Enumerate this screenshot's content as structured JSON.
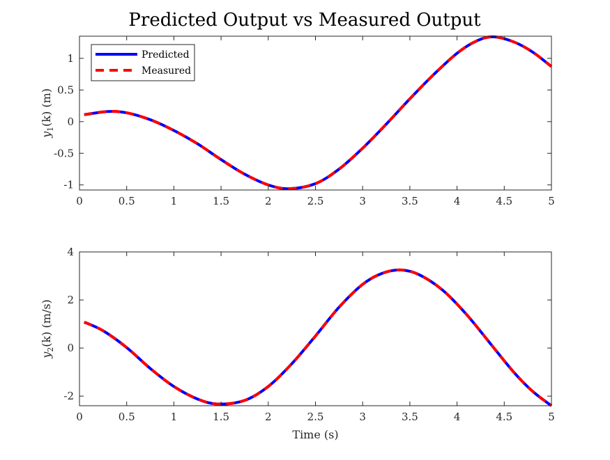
{
  "title": "Predicted Output vs Measured Output",
  "legend": {
    "placement": "top-left (top subplot)",
    "entries": [
      {
        "name": "Predicted",
        "color": "#0000ff",
        "style": "solid"
      },
      {
        "name": "Measured",
        "color": "#ff0000",
        "style": "dashed"
      }
    ]
  },
  "chart_data": [
    {
      "type": "line",
      "ylabel": {
        "prefix": "y",
        "sub": "1",
        "suffix": "(k) (m)"
      },
      "xlabel": "",
      "xlim": [
        0,
        5
      ],
      "ylim": [
        -1.08,
        1.35
      ],
      "xticks": [
        0,
        0.5,
        1,
        1.5,
        2,
        2.5,
        3,
        3.5,
        4,
        4.5,
        5
      ],
      "xtick_labels": [
        "0",
        "0.5",
        "1",
        "1.5",
        "2",
        "2.5",
        "3",
        "3.5",
        "4",
        "4.5",
        "5"
      ],
      "yticks": [
        -1,
        -0.5,
        0,
        0.5,
        1
      ],
      "ytick_labels": [
        "-1",
        "-0.5",
        "0",
        "0.5",
        "1"
      ],
      "grid": false,
      "x": [
        0.05,
        0.3,
        0.5,
        0.75,
        1.0,
        1.25,
        1.5,
        1.75,
        2.0,
        2.22,
        2.5,
        2.75,
        3.0,
        3.25,
        3.5,
        3.75,
        4.0,
        4.2,
        4.38,
        4.6,
        4.8,
        5.0
      ],
      "series": [
        {
          "name": "Predicted",
          "values": [
            0.11,
            0.16,
            0.14,
            0.03,
            -0.14,
            -0.35,
            -0.6,
            -0.83,
            -1.0,
            -1.06,
            -0.98,
            -0.75,
            -0.42,
            -0.04,
            0.36,
            0.74,
            1.08,
            1.27,
            1.34,
            1.26,
            1.1,
            0.87
          ]
        },
        {
          "name": "Measured",
          "values": [
            0.11,
            0.16,
            0.14,
            0.03,
            -0.14,
            -0.35,
            -0.6,
            -0.83,
            -1.0,
            -1.06,
            -0.98,
            -0.75,
            -0.42,
            -0.04,
            0.36,
            0.74,
            1.08,
            1.27,
            1.34,
            1.26,
            1.1,
            0.87
          ]
        }
      ]
    },
    {
      "type": "line",
      "ylabel": {
        "prefix": "y",
        "sub": "2",
        "suffix": "(k) (m/s)"
      },
      "xlabel": "Time (s)",
      "xlim": [
        0,
        5
      ],
      "ylim": [
        -2.4,
        4
      ],
      "xticks": [
        0,
        0.5,
        1,
        1.5,
        2,
        2.5,
        3,
        3.5,
        4,
        4.5,
        5
      ],
      "xtick_labels": [
        "0",
        "0.5",
        "1",
        "1.5",
        "2",
        "2.5",
        "3",
        "3.5",
        "4",
        "4.5",
        "5"
      ],
      "yticks": [
        -2,
        0,
        2,
        4
      ],
      "ytick_labels": [
        "-2",
        "0",
        "2",
        "4"
      ],
      "grid": false,
      "x": [
        0.05,
        0.25,
        0.5,
        0.75,
        1.0,
        1.25,
        1.47,
        1.75,
        2.0,
        2.25,
        2.5,
        2.75,
        3.0,
        3.2,
        3.4,
        3.6,
        3.85,
        4.1,
        4.35,
        4.6,
        4.8,
        5.0
      ],
      "series": [
        {
          "name": "Predicted",
          "values": [
            1.08,
            0.72,
            0.02,
            -0.85,
            -1.6,
            -2.12,
            -2.33,
            -2.18,
            -1.6,
            -0.65,
            0.5,
            1.7,
            2.65,
            3.1,
            3.25,
            3.05,
            2.4,
            1.4,
            0.2,
            -1.0,
            -1.8,
            -2.4
          ]
        },
        {
          "name": "Measured",
          "values": [
            1.08,
            0.72,
            0.02,
            -0.85,
            -1.6,
            -2.12,
            -2.33,
            -2.18,
            -1.6,
            -0.65,
            0.5,
            1.7,
            2.65,
            3.1,
            3.25,
            3.05,
            2.4,
            1.4,
            0.2,
            -1.0,
            -1.8,
            -2.4
          ]
        }
      ]
    }
  ]
}
